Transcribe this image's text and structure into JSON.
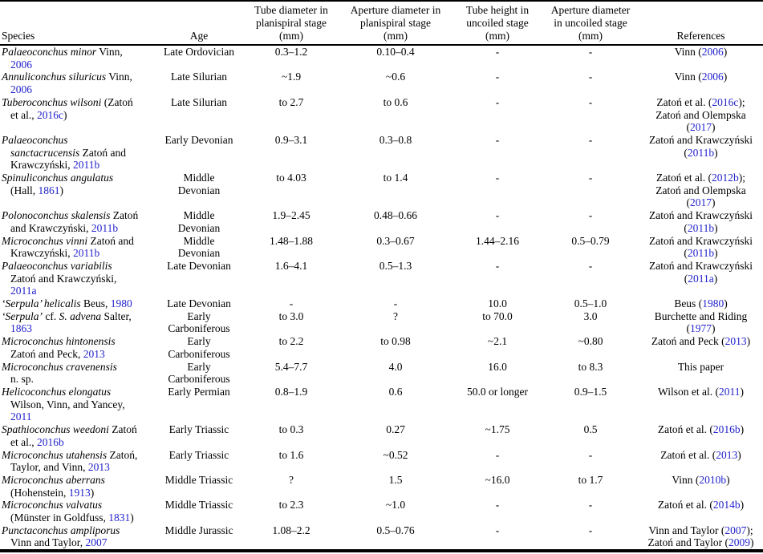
{
  "link_color": "#2222cc",
  "table": {
    "columns": [
      {
        "key": "species",
        "label": "Species"
      },
      {
        "key": "age",
        "label": "Age"
      },
      {
        "key": "tube_diameter_planispiral",
        "label": "Tube diameter in\nplanispiral stage\n(mm)"
      },
      {
        "key": "aperture_diameter_planispiral",
        "label": "Aperture diameter in\nplanispiral stage\n(mm)"
      },
      {
        "key": "tube_height_uncoiled",
        "label": "Tube height in\nuncoiled stage\n(mm)"
      },
      {
        "key": "aperture_diameter_uncoiled",
        "label": "Aperture diameter\nin uncoiled stage\n(mm)"
      },
      {
        "key": "references",
        "label": "References"
      }
    ],
    "rows": [
      {
        "species": [
          [
            "i",
            "Palaeoconchus minor"
          ],
          [
            "r",
            " Vinn,\n"
          ],
          [
            "l",
            "2006"
          ]
        ],
        "age": "Late Ordovician",
        "tube_diameter_planispiral": "0.3–1.2",
        "aperture_diameter_planispiral": "0.10–0.4",
        "tube_height_uncoiled": "-",
        "aperture_diameter_uncoiled": "-",
        "references": [
          [
            "r",
            "Vinn ("
          ],
          [
            "l",
            "2006"
          ],
          [
            "r",
            ")"
          ]
        ]
      },
      {
        "species": [
          [
            "i",
            "Annuliconchus siluricus"
          ],
          [
            "r",
            " Vinn,\n"
          ],
          [
            "l",
            "2006"
          ]
        ],
        "age": "Late Silurian",
        "tube_diameter_planispiral": "~1.9",
        "aperture_diameter_planispiral": "~0.6",
        "tube_height_uncoiled": "-",
        "aperture_diameter_uncoiled": "-",
        "references": [
          [
            "r",
            "Vinn ("
          ],
          [
            "l",
            "2006"
          ],
          [
            "r",
            ")"
          ]
        ]
      },
      {
        "species": [
          [
            "i",
            "Tuberoconchus wilsoni"
          ],
          [
            "r",
            " (Zatoń\net al., "
          ],
          [
            "l",
            "2016c"
          ],
          [
            "r",
            ")"
          ]
        ],
        "age": "Late Silurian",
        "tube_diameter_planispiral": "to 2.7",
        "aperture_diameter_planispiral": "to 0.6",
        "tube_height_uncoiled": "-",
        "aperture_diameter_uncoiled": "-",
        "references": [
          [
            "r",
            "Zatoń et al. ("
          ],
          [
            "l",
            "2016c"
          ],
          [
            "r",
            ");\nZatoń and Olempska\n("
          ],
          [
            "l",
            "2017"
          ],
          [
            "r",
            ")"
          ]
        ]
      },
      {
        "species": [
          [
            "i",
            "Palaeoconchus\nsanctacrucensis"
          ],
          [
            "r",
            " Zatoń and\nKrawczyński, "
          ],
          [
            "l",
            "2011b"
          ]
        ],
        "age": "Early Devonian",
        "tube_diameter_planispiral": "0.9–3.1",
        "aperture_diameter_planispiral": "0.3–0.8",
        "tube_height_uncoiled": "-",
        "aperture_diameter_uncoiled": "-",
        "references": [
          [
            "r",
            "Zatoń and Krawczyński\n("
          ],
          [
            "l",
            "2011b"
          ],
          [
            "r",
            ")"
          ]
        ]
      },
      {
        "species": [
          [
            "i",
            "Spinuliconchus angulatus"
          ],
          [
            "r",
            "\n(Hall, "
          ],
          [
            "l",
            "1861"
          ],
          [
            "r",
            ")"
          ]
        ],
        "age": "Middle\nDevonian",
        "tube_diameter_planispiral": "to 4.03",
        "aperture_diameter_planispiral": "to 1.4",
        "tube_height_uncoiled": "-",
        "aperture_diameter_uncoiled": "-",
        "references": [
          [
            "r",
            "Zatoń et al. ("
          ],
          [
            "l",
            "2012b"
          ],
          [
            "r",
            ");\nZatoń and Olempska\n("
          ],
          [
            "l",
            "2017"
          ],
          [
            "r",
            ")"
          ]
        ]
      },
      {
        "species": [
          [
            "i",
            "Polonoconchus skalensis"
          ],
          [
            "r",
            " Zatoń\nand Krawczyński, "
          ],
          [
            "l",
            "2011b"
          ]
        ],
        "age": "Middle\nDevonian",
        "tube_diameter_planispiral": "1.9–2.45",
        "aperture_diameter_planispiral": "0.48–0.66",
        "tube_height_uncoiled": "-",
        "aperture_diameter_uncoiled": "-",
        "references": [
          [
            "r",
            "Zatoń and Krawczyński\n("
          ],
          [
            "l",
            "2011b"
          ],
          [
            "r",
            ")"
          ]
        ]
      },
      {
        "species": [
          [
            "i",
            "Microconchus vinni"
          ],
          [
            "r",
            " Zatoń and\nKrawczyński, "
          ],
          [
            "l",
            "2011b"
          ]
        ],
        "age": "Middle\nDevonian",
        "tube_diameter_planispiral": "1.48–1.88",
        "aperture_diameter_planispiral": "0.3–0.67",
        "tube_height_uncoiled": "1.44–2.16",
        "aperture_diameter_uncoiled": "0.5–0.79",
        "references": [
          [
            "r",
            "Zatoń and Krawczyński\n("
          ],
          [
            "l",
            "2011b"
          ],
          [
            "r",
            ")"
          ]
        ]
      },
      {
        "species": [
          [
            "i",
            "Palaeoconchus variabilis"
          ],
          [
            "r",
            "\nZatoń and Krawczyński,\n"
          ],
          [
            "l",
            "2011a"
          ]
        ],
        "age": "Late Devonian",
        "tube_diameter_planispiral": "1.6–4.1",
        "aperture_diameter_planispiral": "0.5–1.3",
        "tube_height_uncoiled": "-",
        "aperture_diameter_uncoiled": "-",
        "references": [
          [
            "r",
            "Zatoń and Krawczyński\n("
          ],
          [
            "l",
            "2011a"
          ],
          [
            "r",
            ")"
          ]
        ]
      },
      {
        "species": [
          [
            "i",
            "‘Serpula’ helicalis"
          ],
          [
            "r",
            " Beus, "
          ],
          [
            "l",
            "1980"
          ]
        ],
        "age": "Late Devonian",
        "tube_diameter_planispiral": "-",
        "aperture_diameter_planispiral": "-",
        "tube_height_uncoiled": "10.0",
        "aperture_diameter_uncoiled": "0.5–1.0",
        "references": [
          [
            "r",
            "Beus ("
          ],
          [
            "l",
            "1980"
          ],
          [
            "r",
            ")"
          ]
        ]
      },
      {
        "species": [
          [
            "i",
            "‘Serpula’"
          ],
          [
            "r",
            " cf. "
          ],
          [
            "i",
            "S. advena"
          ],
          [
            "r",
            " Salter,\n"
          ],
          [
            "l",
            "1863"
          ]
        ],
        "age": "Early\nCarboniferous",
        "tube_diameter_planispiral": "to 3.0",
        "aperture_diameter_planispiral": "?",
        "tube_height_uncoiled": "to 70.0",
        "aperture_diameter_uncoiled": "3.0",
        "references": [
          [
            "r",
            "Burchette and Riding\n("
          ],
          [
            "l",
            "1977"
          ],
          [
            "r",
            ")"
          ]
        ]
      },
      {
        "species": [
          [
            "i",
            "Microconchus hintonensis"
          ],
          [
            "r",
            "\nZatoń and Peck, "
          ],
          [
            "l",
            "2013"
          ]
        ],
        "age": "Early\nCarboniferous",
        "tube_diameter_planispiral": "to 2.2",
        "aperture_diameter_planispiral": "to 0.98",
        "tube_height_uncoiled": "~2.1",
        "aperture_diameter_uncoiled": "~0.80",
        "references": [
          [
            "r",
            "Zatoń and Peck ("
          ],
          [
            "l",
            "2013"
          ],
          [
            "r",
            ")"
          ]
        ]
      },
      {
        "species": [
          [
            "i",
            "Microconchus cravenensis"
          ],
          [
            "r",
            "\nn. sp."
          ]
        ],
        "age": "Early\nCarboniferous",
        "tube_diameter_planispiral": "5.4–7.7",
        "aperture_diameter_planispiral": "4.0",
        "tube_height_uncoiled": "16.0",
        "aperture_diameter_uncoiled": "to 8.3",
        "references": [
          [
            "r",
            "This paper"
          ]
        ]
      },
      {
        "species": [
          [
            "i",
            "Helicoconchus elongatus"
          ],
          [
            "r",
            "\nWilson, Vinn, and Yancey,\n"
          ],
          [
            "l",
            "2011"
          ]
        ],
        "age": "Early Permian",
        "tube_diameter_planispiral": "0.8–1.9",
        "aperture_diameter_planispiral": "0.6",
        "tube_height_uncoiled": "50.0 or longer",
        "aperture_diameter_uncoiled": "0.9–1.5",
        "references": [
          [
            "r",
            "Wilson et al. ("
          ],
          [
            "l",
            "2011"
          ],
          [
            "r",
            ")"
          ]
        ]
      },
      {
        "species": [
          [
            "i",
            "Spathioconchus weedoni"
          ],
          [
            "r",
            " Zatoń\net al., "
          ],
          [
            "l",
            "2016b"
          ]
        ],
        "age": "Early Triassic",
        "tube_diameter_planispiral": "to 0.3",
        "aperture_diameter_planispiral": "0.27",
        "tube_height_uncoiled": "~1.75",
        "aperture_diameter_uncoiled": "0.5",
        "references": [
          [
            "r",
            "Zatoń et al. ("
          ],
          [
            "l",
            "2016b"
          ],
          [
            "r",
            ")"
          ]
        ]
      },
      {
        "species": [
          [
            "i",
            "Microconchus utahensis"
          ],
          [
            "r",
            " Zatoń,\nTaylor, and Vinn, "
          ],
          [
            "l",
            "2013"
          ]
        ],
        "age": "Early Triassic",
        "tube_diameter_planispiral": "to 1.6",
        "aperture_diameter_planispiral": "~0.52",
        "tube_height_uncoiled": "-",
        "aperture_diameter_uncoiled": "-",
        "references": [
          [
            "r",
            "Zatoń et al. ("
          ],
          [
            "l",
            "2013"
          ],
          [
            "r",
            ")"
          ]
        ]
      },
      {
        "species": [
          [
            "i",
            "Microconchus aberrans"
          ],
          [
            "r",
            "\n(Hohenstein, "
          ],
          [
            "l",
            "1913"
          ],
          [
            "r",
            ")"
          ]
        ],
        "age": "Middle Triassic",
        "tube_diameter_planispiral": "?",
        "aperture_diameter_planispiral": "1.5",
        "tube_height_uncoiled": "~16.0",
        "aperture_diameter_uncoiled": "to 1.7",
        "references": [
          [
            "r",
            "Vinn ("
          ],
          [
            "l",
            "2010b"
          ],
          [
            "r",
            ")"
          ]
        ]
      },
      {
        "species": [
          [
            "i",
            "Microconchus valvatus"
          ],
          [
            "r",
            "\n(Münster in Goldfuss, "
          ],
          [
            "l",
            "1831"
          ],
          [
            "r",
            ")"
          ]
        ],
        "age": "Middle Triassic",
        "tube_diameter_planispiral": "to 2.3",
        "aperture_diameter_planispiral": "~1.0",
        "tube_height_uncoiled": "-",
        "aperture_diameter_uncoiled": "-",
        "references": [
          [
            "r",
            "Zatoń et al. ("
          ],
          [
            "l",
            "2014b"
          ],
          [
            "r",
            ")"
          ]
        ]
      },
      {
        "species": [
          [
            "i",
            "Punctaconchus ampliporus"
          ],
          [
            "r",
            "\nVinn and Taylor, "
          ],
          [
            "l",
            "2007"
          ]
        ],
        "age": "Middle Jurassic",
        "tube_diameter_planispiral": "1.08–2.2",
        "aperture_diameter_planispiral": "0.5–0.76",
        "tube_height_uncoiled": "-",
        "aperture_diameter_uncoiled": "-",
        "references": [
          [
            "r",
            "Vinn and Taylor ("
          ],
          [
            "l",
            "2007"
          ],
          [
            "r",
            ");\nZatoń and Taylor ("
          ],
          [
            "l",
            "2009"
          ],
          [
            "r",
            ")"
          ]
        ]
      }
    ]
  }
}
